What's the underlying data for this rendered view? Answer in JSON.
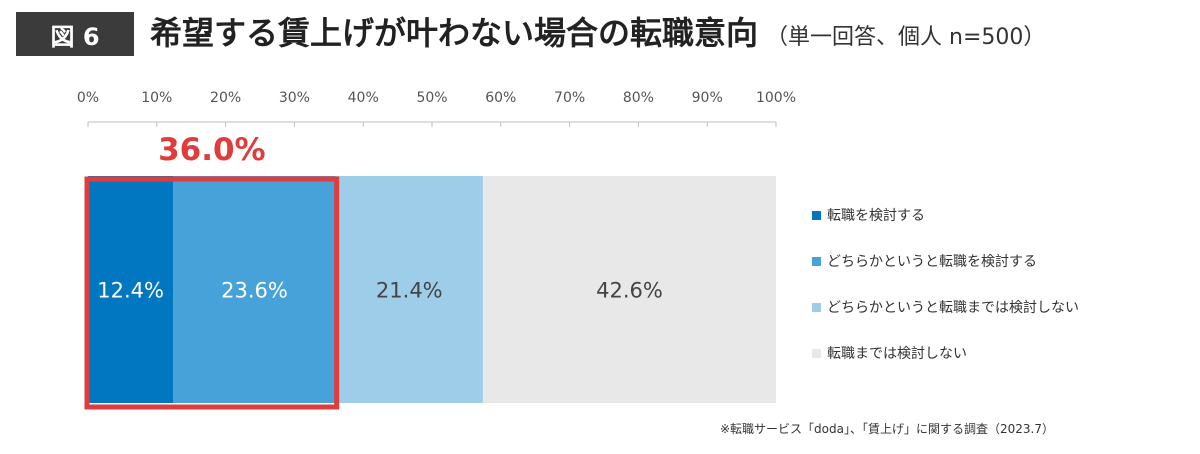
{
  "figure_label": "図 6",
  "title": "希望する賃上げが叶わない場合の転職意向",
  "subtitle": "（単一回答、個人 n=500）",
  "footnote": "※転職サービス「doda」、「賃上げ」に関する調査（2023.7）",
  "highlight": {
    "label": "36.0%",
    "color": "#e03c3c"
  },
  "chart_data": {
    "type": "bar",
    "orientation": "horizontal",
    "stacked": true,
    "x_ticks": [
      "0%",
      "10%",
      "20%",
      "30%",
      "40%",
      "50%",
      "60%",
      "70%",
      "80%",
      "90%",
      "100%"
    ],
    "xlim": [
      0,
      100
    ],
    "grid": false,
    "legend_position": "right",
    "series": [
      {
        "name": "転職を検討する",
        "value": 12.4,
        "label": "12.4%",
        "color": "#0077c0",
        "text_color": "#ffffff"
      },
      {
        "name": "どちらかというと転職を検討する",
        "value": 23.6,
        "label": "23.6%",
        "color": "#46a2d8",
        "text_color": "#ffffff"
      },
      {
        "name": "どちらかというと転職までは検討しない",
        "value": 21.4,
        "label": "21.4%",
        "color": "#9ecde9",
        "text_color": "#444444"
      },
      {
        "name": "転職までは検討しない",
        "value": 42.6,
        "label": "42.6%",
        "color": "#e8e8e8",
        "text_color": "#444444"
      }
    ]
  }
}
